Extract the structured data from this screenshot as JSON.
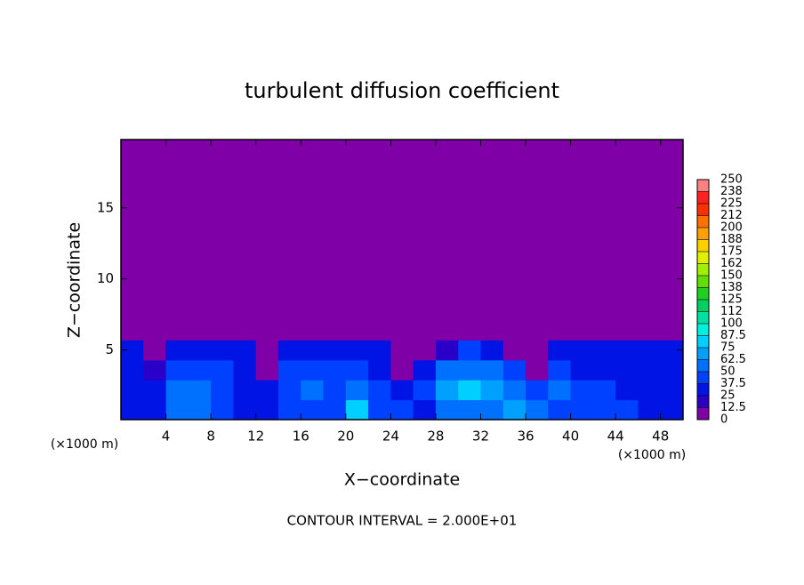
{
  "chart_data": {
    "type": "contour",
    "title": "turbulent diffusion coefficient",
    "xlabel": "X−coordinate",
    "ylabel": "Z−coordinate",
    "xunit": "(×1000 m)",
    "yunit": "(×1000 m)",
    "footnote": "CONTOUR INTERVAL = 2.000E+01",
    "xlim": [
      0,
      50
    ],
    "ylim": [
      0.1,
      19.8
    ],
    "xticks": [
      4,
      8,
      12,
      16,
      20,
      24,
      28,
      32,
      36,
      40,
      44,
      48
    ],
    "yticks": [
      5,
      10,
      15
    ],
    "x": [
      1,
      3,
      5,
      7,
      9,
      11,
      13,
      15,
      17,
      19,
      21,
      23,
      25,
      27,
      29,
      31,
      33,
      35,
      37,
      39,
      41,
      43,
      45,
      47,
      49
    ],
    "z": [
      0.8,
      2.2,
      3.6,
      5.0,
      6.4
    ],
    "values": [
      [
        30,
        35,
        55,
        60,
        45,
        35,
        30,
        40,
        45,
        40,
        85,
        45,
        40,
        35,
        50,
        55,
        60,
        70,
        50,
        45,
        40,
        45,
        40,
        35,
        30
      ],
      [
        30,
        35,
        50,
        55,
        40,
        35,
        25,
        45,
        50,
        45,
        50,
        40,
        30,
        45,
        65,
        75,
        65,
        60,
        40,
        50,
        45,
        40,
        35,
        30,
        30
      ],
      [
        25,
        20,
        45,
        45,
        40,
        35,
        0,
        45,
        45,
        40,
        40,
        35,
        0,
        35,
        55,
        60,
        55,
        40,
        0,
        40,
        35,
        35,
        30,
        30,
        25
      ],
      [
        25,
        0,
        30,
        35,
        35,
        30,
        0,
        30,
        35,
        30,
        30,
        25,
        0,
        0,
        20,
        40,
        35,
        0,
        0,
        25,
        30,
        30,
        25,
        25,
        25
      ],
      [
        0,
        0,
        0,
        5,
        5,
        0,
        0,
        0,
        5,
        5,
        0,
        0,
        0,
        0,
        0,
        0,
        0,
        0,
        0,
        0,
        0,
        0,
        5,
        0,
        0
      ]
    ],
    "colorbar": {
      "ticks": [
        0,
        12.5,
        25,
        37.5,
        50,
        62.5,
        75,
        87.5,
        100,
        {
          "value": 112.5,
          "label": "112"
        },
        125,
        {
          "value": 137.5,
          "label": "138"
        },
        150,
        {
          "value": 162.5,
          "label": "162"
        },
        175,
        {
          "value": 187.5,
          "label": "188"
        },
        200,
        {
          "value": 212.5,
          "label": "212"
        },
        225,
        {
          "value": 237.5,
          "label": "238"
        },
        250
      ],
      "colors": [
        "#7f00a7",
        "#2a00c8",
        "#0014e6",
        "#0040ff",
        "#0070ff",
        "#00a0ff",
        "#00d0ff",
        "#00f0e0",
        "#00e0a0",
        "#00d060",
        "#20d020",
        "#60e000",
        "#a0f000",
        "#e0f000",
        "#ffd000",
        "#ffa000",
        "#ff7000",
        "#ff3000",
        "#ff2020",
        "#ff8080"
      ]
    }
  }
}
